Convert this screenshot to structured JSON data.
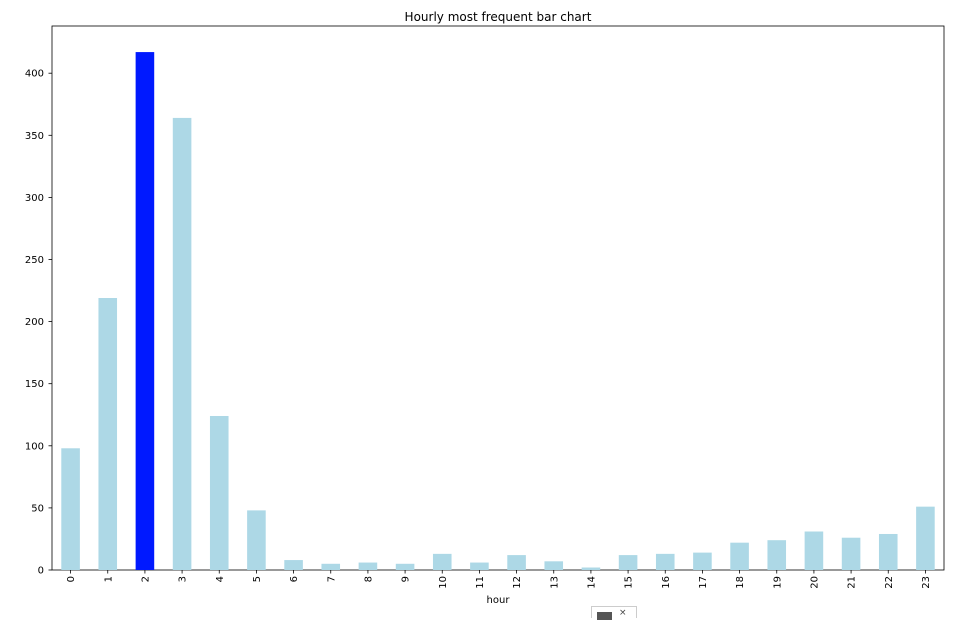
{
  "chart_data": {
    "type": "bar",
    "title": "Hourly most frequent bar chart",
    "xlabel": "hour",
    "ylabel": "",
    "categories": [
      "0",
      "1",
      "2",
      "3",
      "4",
      "5",
      "6",
      "7",
      "8",
      "9",
      "10",
      "11",
      "12",
      "13",
      "14",
      "15",
      "16",
      "17",
      "18",
      "19",
      "20",
      "21",
      "22",
      "23"
    ],
    "values": [
      98,
      219,
      417,
      364,
      124,
      48,
      8,
      5,
      6,
      5,
      13,
      6,
      12,
      7,
      2,
      12,
      13,
      14,
      22,
      24,
      31,
      26,
      29,
      51
    ],
    "highlight_index": 2,
    "colors": {
      "default": "#add8e6",
      "highlight": "#0019ff"
    },
    "ylim": [
      0,
      438
    ],
    "yticks": [
      0,
      50,
      100,
      150,
      200,
      250,
      300,
      350,
      400
    ],
    "grid": false,
    "legend_fragment": "× "
  }
}
